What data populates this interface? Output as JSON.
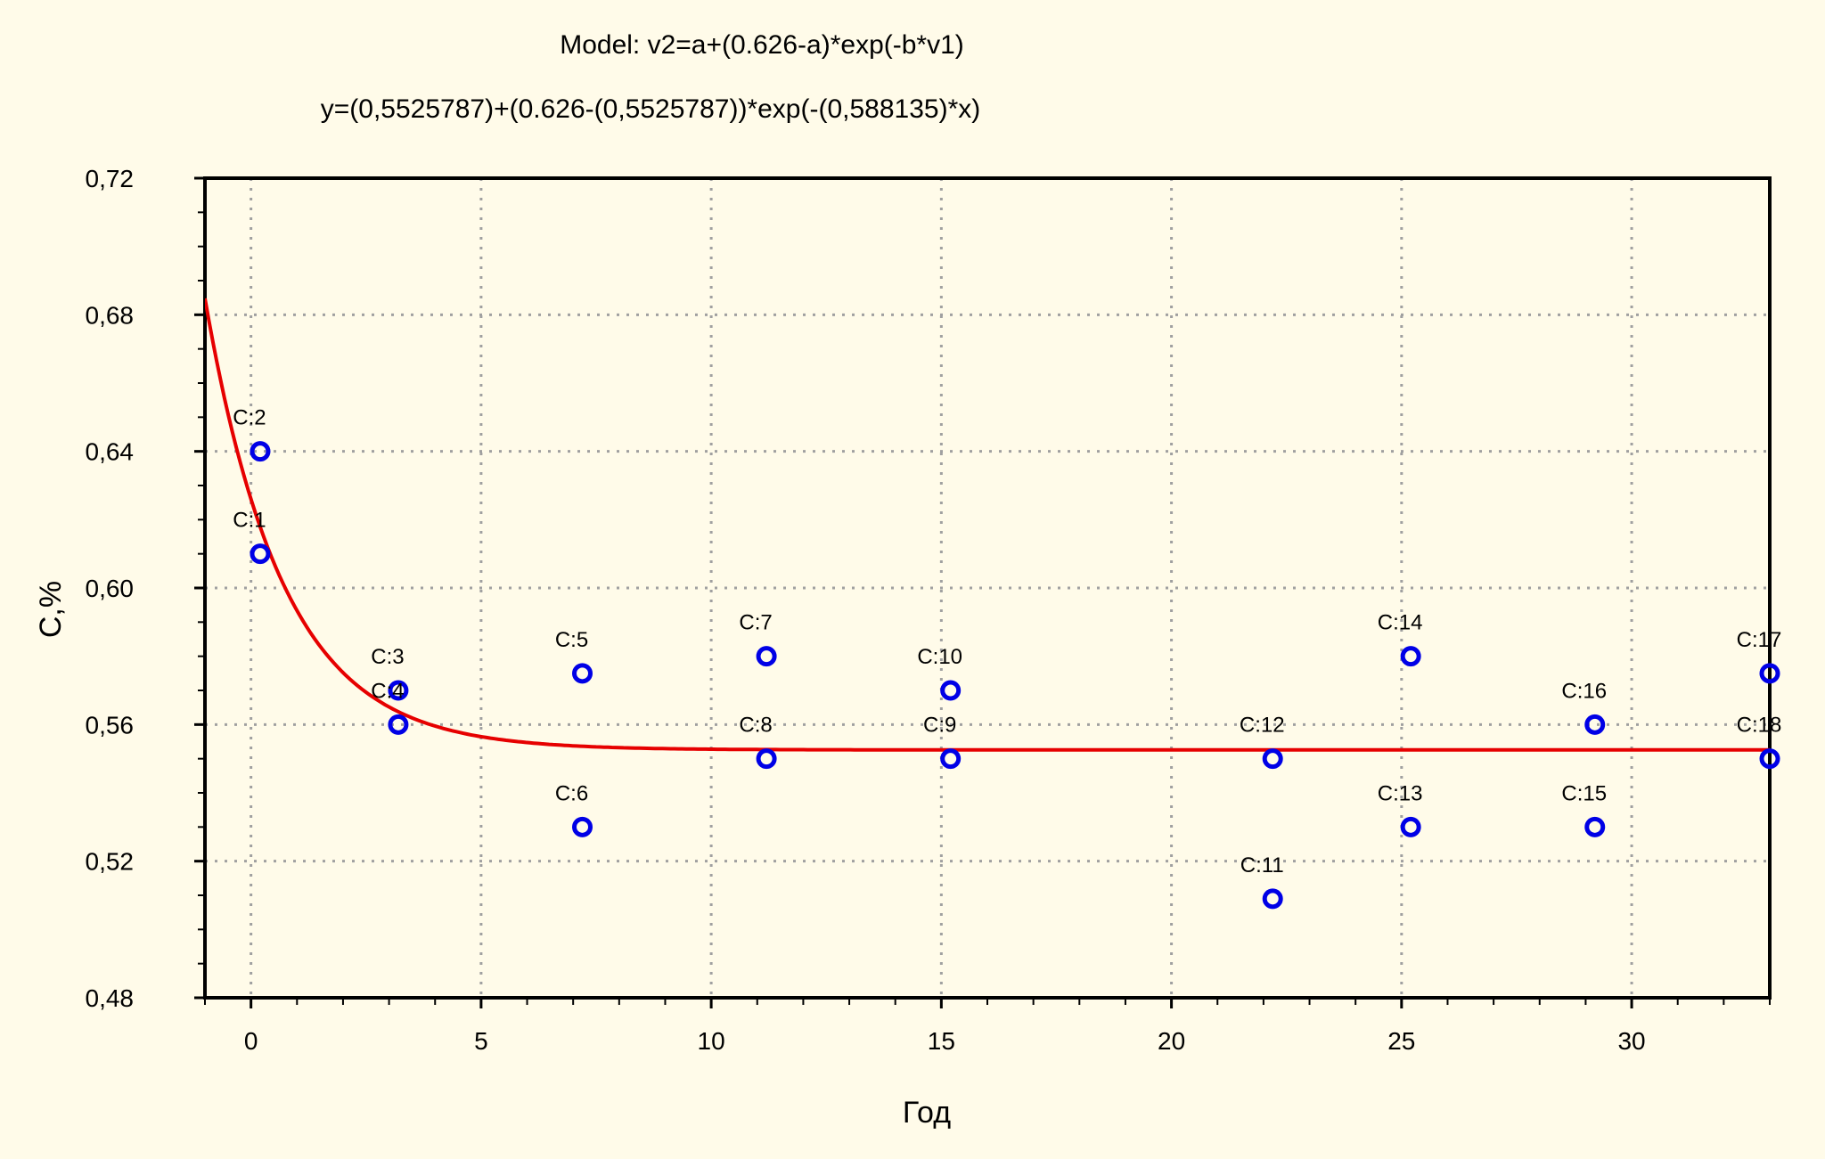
{
  "chart_data": {
    "type": "scatter",
    "title": "Model: v2=a+(0.626-a)*exp(-b*v1)",
    "subtitle": "y=(0,5525787)+(0.626-(0,5525787))*exp(-(0,588135)*x)",
    "xlabel": "Год",
    "ylabel": "C,%",
    "xlim": [
      -1,
      33
    ],
    "ylim": [
      0.48,
      0.72
    ],
    "grid": true,
    "x_ticks": [
      0,
      5,
      10,
      15,
      20,
      25,
      30
    ],
    "x_tick_labels": [
      "0",
      "5",
      "10",
      "15",
      "20",
      "25",
      "30"
    ],
    "y_ticks": [
      0.48,
      0.52,
      0.56,
      0.6,
      0.64,
      0.68,
      0.72
    ],
    "y_tick_labels": [
      "0,48",
      "0,52",
      "0,56",
      "0,60",
      "0,64",
      "0,68",
      "0,72"
    ],
    "points": [
      {
        "label": "C:1",
        "x": 0.2,
        "y": 0.61
      },
      {
        "label": "C:2",
        "x": 0.2,
        "y": 0.64
      },
      {
        "label": "C:3",
        "x": 3.2,
        "y": 0.57
      },
      {
        "label": "C:4",
        "x": 3.2,
        "y": 0.56
      },
      {
        "label": "C:5",
        "x": 7.2,
        "y": 0.575
      },
      {
        "label": "C:6",
        "x": 7.2,
        "y": 0.53
      },
      {
        "label": "C:7",
        "x": 11.2,
        "y": 0.58
      },
      {
        "label": "C:8",
        "x": 11.2,
        "y": 0.55
      },
      {
        "label": "C:9",
        "x": 15.2,
        "y": 0.55
      },
      {
        "label": "C:10",
        "x": 15.2,
        "y": 0.57
      },
      {
        "label": "C:11",
        "x": 22.2,
        "y": 0.509
      },
      {
        "label": "C:12",
        "x": 22.2,
        "y": 0.55
      },
      {
        "label": "C:13",
        "x": 25.2,
        "y": 0.53
      },
      {
        "label": "C:14",
        "x": 25.2,
        "y": 0.58
      },
      {
        "label": "C:15",
        "x": 29.2,
        "y": 0.53
      },
      {
        "label": "C:16",
        "x": 29.2,
        "y": 0.56
      },
      {
        "label": "C:17",
        "x": 33,
        "y": 0.575
      },
      {
        "label": "C:18",
        "x": 33,
        "y": 0.55
      }
    ],
    "fit": {
      "a": 0.5525787,
      "c": 0.626,
      "b": 0.588135
    },
    "colors": {
      "points": "#0000e6",
      "fit": "#e60000",
      "grid": "#a0a0a0",
      "background": "#fffbe9"
    }
  }
}
